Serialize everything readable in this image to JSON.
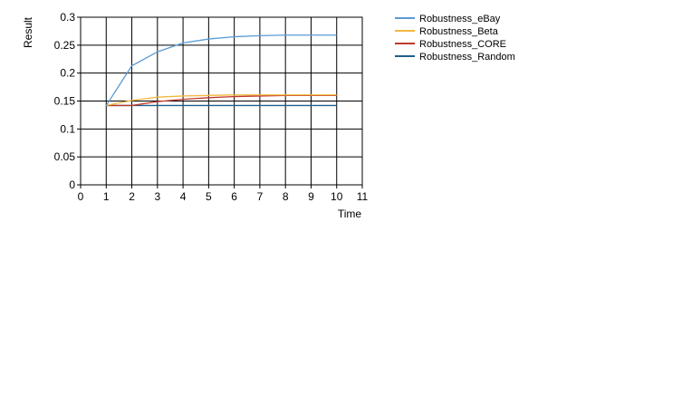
{
  "chart_data": {
    "type": "line",
    "xlabel": "Time",
    "ylabel": "Result",
    "xlim": [
      0,
      11
    ],
    "ylim": [
      0,
      0.3
    ],
    "x_ticks": [
      0,
      1,
      2,
      3,
      4,
      5,
      6,
      7,
      8,
      9,
      10,
      11
    ],
    "y_ticks": [
      0,
      0.05,
      0.1,
      0.15,
      0.2,
      0.25,
      0.3
    ],
    "y_tick_labels": [
      "0",
      "0.05",
      "0.1",
      "0.15",
      "0.2",
      "0.25",
      "0.3"
    ],
    "grid": true,
    "legend_position": "top-right, outside plot",
    "x": [
      1,
      2,
      3,
      4,
      5,
      6,
      7,
      8,
      9,
      10
    ],
    "series": [
      {
        "name": "Robustness_eBay",
        "color": "#5b9bd5",
        "values": [
          0.142,
          0.213,
          0.238,
          0.254,
          0.261,
          0.265,
          0.267,
          0.268,
          0.268,
          0.268
        ]
      },
      {
        "name": "Robustness_Beta",
        "color": "#f0b941",
        "values": [
          0.142,
          0.151,
          0.157,
          0.159,
          0.16,
          0.161,
          0.161,
          0.161,
          0.161,
          0.161
        ]
      },
      {
        "name": "Robustness_CORE",
        "color": "#c0392b",
        "values": [
          0.142,
          0.142,
          0.149,
          0.153,
          0.156,
          0.158,
          0.159,
          0.16,
          0.16,
          0.16
        ]
      },
      {
        "name": "Robustness_Random",
        "color": "#1f5f8b",
        "values": [
          0.142,
          0.142,
          0.142,
          0.142,
          0.142,
          0.142,
          0.142,
          0.142,
          0.142,
          0.142
        ]
      }
    ]
  }
}
